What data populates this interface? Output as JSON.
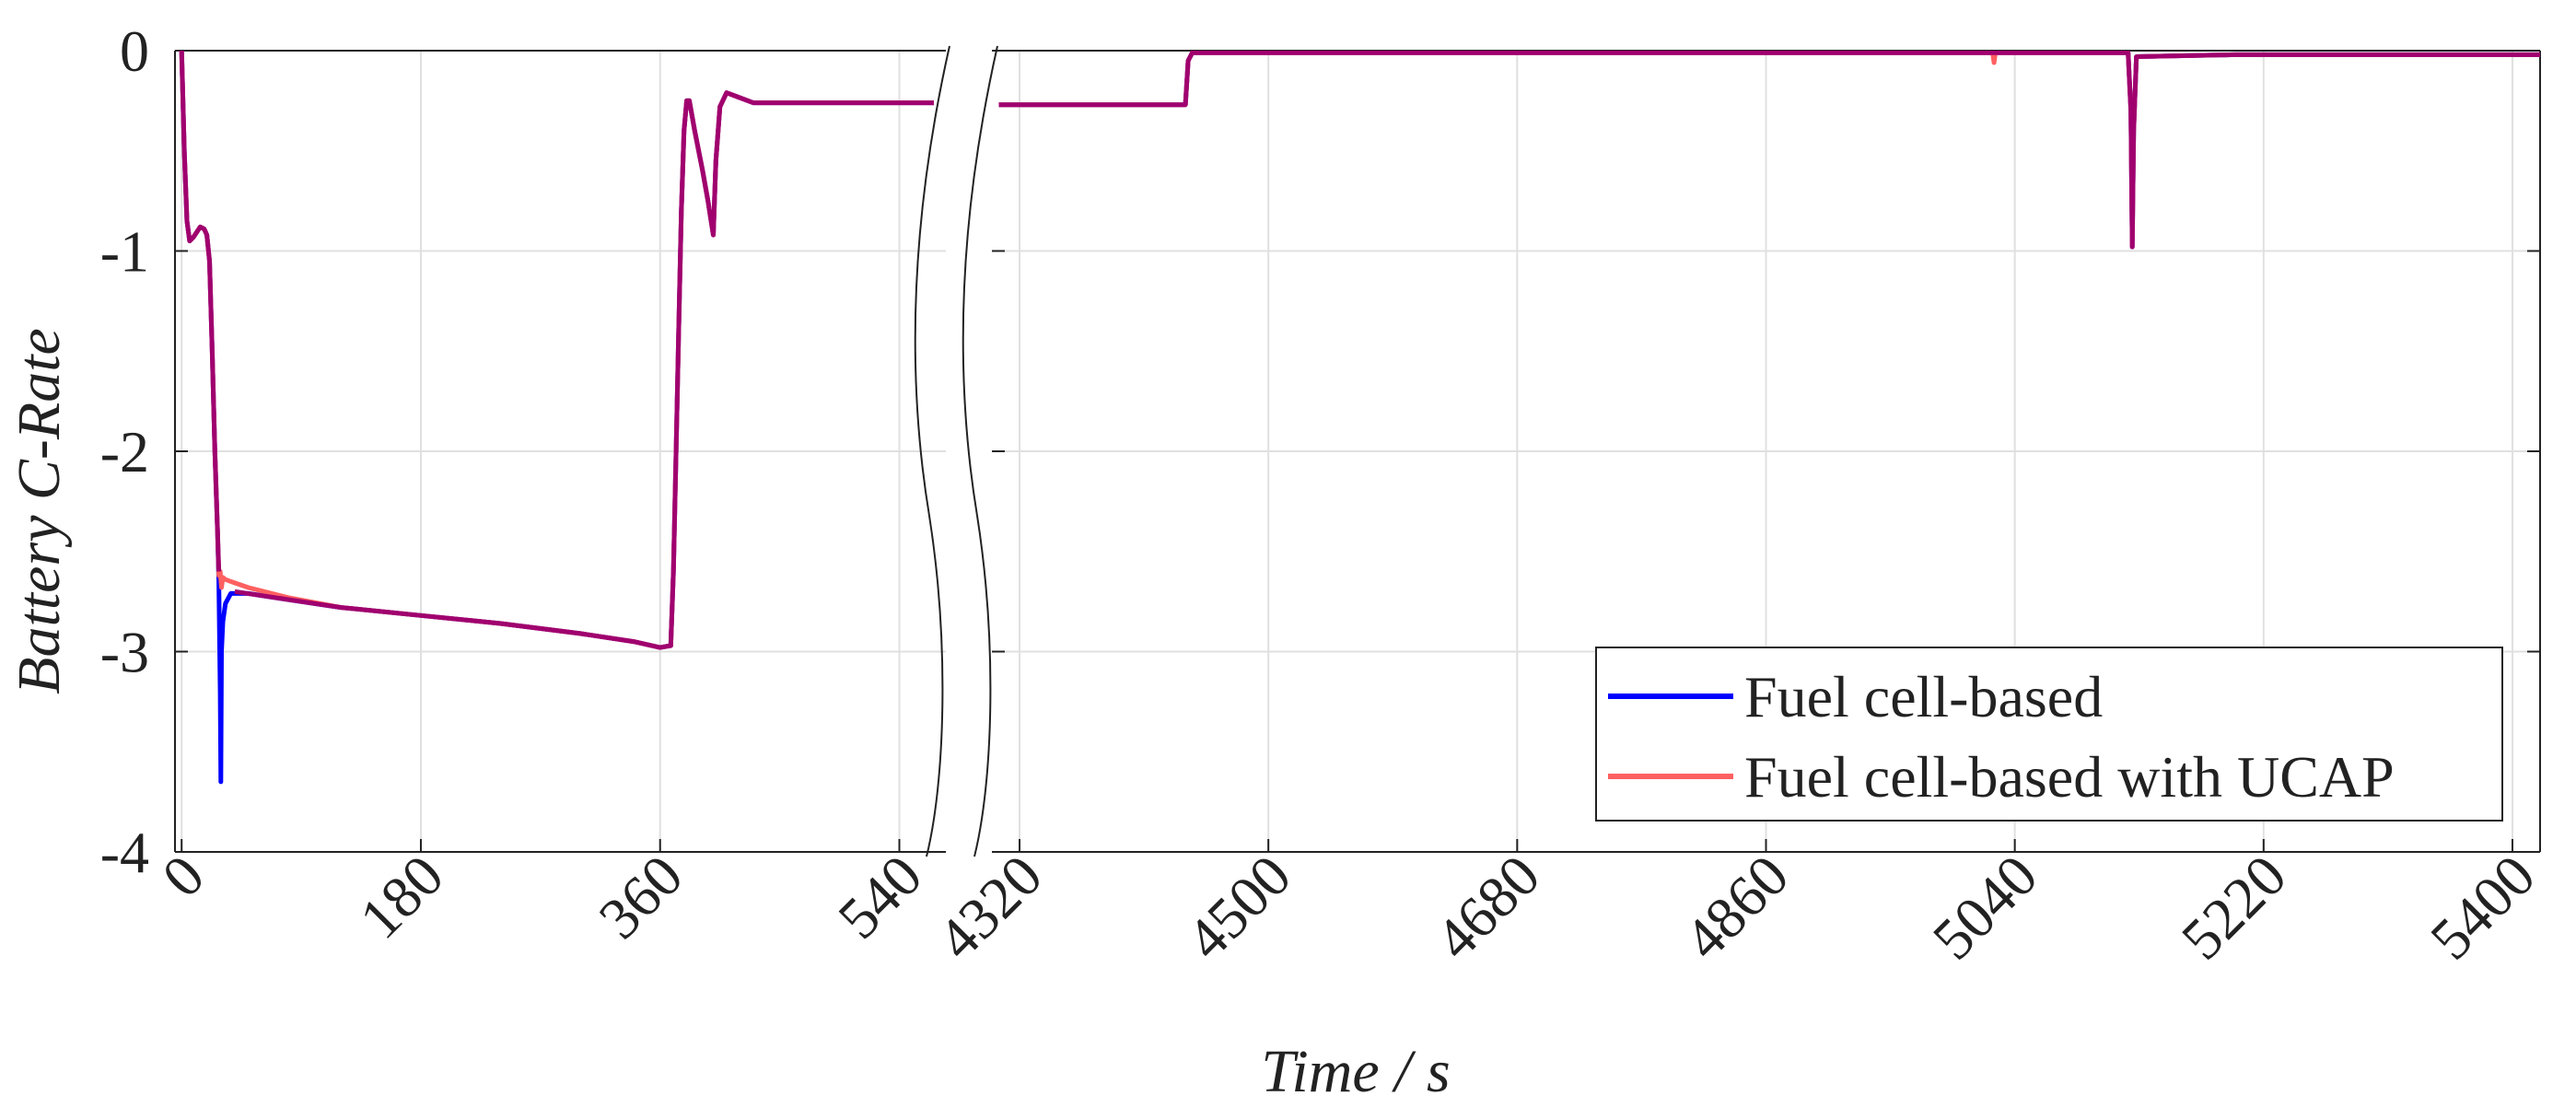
{
  "chart_data": {
    "type": "line",
    "xlabel": "Time / s",
    "ylabel": "Battery C-Rate",
    "ylim": [
      -4,
      0
    ],
    "yticks": [
      "0",
      "-1",
      "-2",
      "-3",
      "-4"
    ],
    "broken_x_axis": true,
    "x_segments": [
      {
        "xlim": [
          -5,
          575
        ],
        "xticks": [
          "0",
          "180",
          "360",
          "540"
        ]
      },
      {
        "xlim": [
          4300,
          5420
        ],
        "xticks": [
          "4320",
          "4500",
          "4680",
          "4860",
          "5040",
          "5220",
          "5400"
        ]
      }
    ],
    "grid": true,
    "legend_position": "bottom-right",
    "series": [
      {
        "name": "Fuel cell-based",
        "color": "#0000ff",
        "segments": [
          [
            [
              0,
              0
            ],
            [
              2,
              -0.5
            ],
            [
              4,
              -0.85
            ],
            [
              6,
              -0.95
            ],
            [
              9,
              -0.93
            ],
            [
              12,
              -0.9
            ],
            [
              14,
              -0.88
            ],
            [
              17,
              -0.89
            ],
            [
              19,
              -0.92
            ],
            [
              21,
              -1.05
            ],
            [
              23,
              -1.5
            ],
            [
              25,
              -2.0
            ],
            [
              27,
              -2.4
            ],
            [
              28,
              -2.65
            ],
            [
              29,
              -3.2
            ],
            [
              29.5,
              -3.65
            ],
            [
              30,
              -3.0
            ],
            [
              31,
              -2.85
            ],
            [
              33,
              -2.76
            ],
            [
              37,
              -2.71
            ],
            [
              50,
              -2.71
            ],
            [
              80,
              -2.74
            ],
            [
              120,
              -2.78
            ],
            [
              180,
              -2.82
            ],
            [
              240,
              -2.86
            ],
            [
              300,
              -2.91
            ],
            [
              340,
              -2.95
            ],
            [
              360,
              -2.98
            ],
            [
              368,
              -2.97
            ],
            [
              370,
              -2.6
            ],
            [
              372,
              -2.0
            ],
            [
              374,
              -1.4
            ],
            [
              376,
              -0.8
            ],
            [
              378,
              -0.4
            ],
            [
              380,
              -0.25
            ],
            [
              382,
              -0.25
            ],
            [
              386,
              -0.4
            ],
            [
              392,
              -0.6
            ],
            [
              396,
              -0.75
            ],
            [
              400,
              -0.92
            ],
            [
              402,
              -0.55
            ],
            [
              405,
              -0.28
            ],
            [
              410,
              -0.21
            ],
            [
              418,
              -0.23
            ],
            [
              430,
              -0.26
            ],
            [
              470,
              -0.26
            ],
            [
              520,
              -0.26
            ],
            [
              566,
              -0.26
            ]
          ],
          [
            [
              4305,
              -0.27
            ],
            [
              4400,
              -0.27
            ],
            [
              4440,
              -0.27
            ],
            [
              4442,
              -0.05
            ],
            [
              4445,
              -0.01
            ],
            [
              4600,
              -0.01
            ],
            [
              5000,
              -0.01
            ],
            [
              5100,
              -0.01
            ],
            [
              5122,
              -0.01
            ],
            [
              5124,
              -0.3
            ],
            [
              5125,
              -0.98
            ],
            [
              5126,
              -0.4
            ],
            [
              5128,
              -0.03
            ],
            [
              5200,
              -0.02
            ],
            [
              5420,
              -0.02
            ]
          ]
        ]
      },
      {
        "name": "Fuel cell-based with UCAP",
        "color": "#ff6060",
        "segments": [
          [
            [
              0,
              0
            ],
            [
              2,
              -0.5
            ],
            [
              4,
              -0.85
            ],
            [
              6,
              -0.95
            ],
            [
              9,
              -0.93
            ],
            [
              12,
              -0.9
            ],
            [
              14,
              -0.88
            ],
            [
              17,
              -0.89
            ],
            [
              19,
              -0.92
            ],
            [
              21,
              -1.05
            ],
            [
              23,
              -1.5
            ],
            [
              25,
              -2.0
            ],
            [
              27,
              -2.4
            ],
            [
              28,
              -2.62
            ],
            [
              29,
              -2.6
            ],
            [
              30,
              -2.68
            ],
            [
              31,
              -2.63
            ],
            [
              33,
              -2.64
            ],
            [
              37,
              -2.65
            ],
            [
              50,
              -2.68
            ],
            [
              80,
              -2.73
            ],
            [
              120,
              -2.78
            ],
            [
              180,
              -2.82
            ],
            [
              240,
              -2.86
            ],
            [
              300,
              -2.91
            ],
            [
              340,
              -2.95
            ],
            [
              360,
              -2.98
            ],
            [
              368,
              -2.97
            ],
            [
              370,
              -2.6
            ],
            [
              372,
              -2.0
            ],
            [
              374,
              -1.4
            ],
            [
              376,
              -0.8
            ],
            [
              378,
              -0.4
            ],
            [
              380,
              -0.25
            ],
            [
              382,
              -0.25
            ],
            [
              386,
              -0.4
            ],
            [
              392,
              -0.6
            ],
            [
              396,
              -0.75
            ],
            [
              400,
              -0.92
            ],
            [
              402,
              -0.55
            ],
            [
              405,
              -0.28
            ],
            [
              410,
              -0.21
            ],
            [
              418,
              -0.23
            ],
            [
              430,
              -0.26
            ],
            [
              470,
              -0.26
            ],
            [
              520,
              -0.26
            ],
            [
              566,
              -0.26
            ]
          ],
          [
            [
              4305,
              -0.27
            ],
            [
              4400,
              -0.27
            ],
            [
              4440,
              -0.27
            ],
            [
              4442,
              -0.05
            ],
            [
              4445,
              -0.01
            ],
            [
              4600,
              -0.01
            ],
            [
              5000,
              -0.01
            ],
            [
              5024,
              -0.01
            ],
            [
              5025,
              -0.06
            ],
            [
              5026,
              -0.01
            ],
            [
              5100,
              -0.01
            ],
            [
              5122,
              -0.01
            ],
            [
              5124,
              -0.3
            ],
            [
              5125,
              -0.98
            ],
            [
              5126,
              -0.4
            ],
            [
              5128,
              -0.03
            ],
            [
              5200,
              -0.02
            ],
            [
              5420,
              -0.02
            ]
          ]
        ]
      },
      {
        "name": "",
        "color": "#a0006e",
        "segments": [
          [
            [
              0,
              0
            ],
            [
              2,
              -0.5
            ],
            [
              4,
              -0.85
            ],
            [
              6,
              -0.95
            ],
            [
              9,
              -0.93
            ],
            [
              12,
              -0.9
            ],
            [
              14,
              -0.88
            ],
            [
              17,
              -0.89
            ],
            [
              19,
              -0.92
            ],
            [
              21,
              -1.05
            ],
            [
              23,
              -1.5
            ],
            [
              25,
              -2.0
            ],
            [
              27,
              -2.4
            ],
            [
              28,
              -2.6
            ]
          ],
          [
            [
              40,
              -2.7
            ],
            [
              80,
              -2.74
            ],
            [
              120,
              -2.78
            ],
            [
              180,
              -2.82
            ],
            [
              240,
              -2.86
            ],
            [
              300,
              -2.91
            ],
            [
              340,
              -2.95
            ],
            [
              360,
              -2.98
            ],
            [
              368,
              -2.97
            ],
            [
              370,
              -2.6
            ],
            [
              372,
              -2.0
            ],
            [
              374,
              -1.4
            ],
            [
              376,
              -0.8
            ],
            [
              378,
              -0.4
            ],
            [
              380,
              -0.25
            ],
            [
              382,
              -0.25
            ],
            [
              386,
              -0.4
            ],
            [
              392,
              -0.6
            ],
            [
              396,
              -0.75
            ],
            [
              400,
              -0.92
            ],
            [
              402,
              -0.55
            ],
            [
              405,
              -0.28
            ],
            [
              410,
              -0.21
            ],
            [
              418,
              -0.23
            ],
            [
              430,
              -0.26
            ],
            [
              470,
              -0.26
            ],
            [
              520,
              -0.26
            ],
            [
              566,
              -0.26
            ]
          ],
          [
            [
              4305,
              -0.27
            ],
            [
              4400,
              -0.27
            ],
            [
              4440,
              -0.27
            ],
            [
              4442,
              -0.05
            ],
            [
              4445,
              -0.01
            ],
            [
              4600,
              -0.01
            ],
            [
              5000,
              -0.01
            ],
            [
              5100,
              -0.01
            ],
            [
              5122,
              -0.01
            ],
            [
              5124,
              -0.3
            ],
            [
              5125,
              -0.98
            ],
            [
              5126,
              -0.4
            ],
            [
              5128,
              -0.03
            ],
            [
              5200,
              -0.02
            ],
            [
              5420,
              -0.02
            ]
          ]
        ]
      }
    ]
  }
}
